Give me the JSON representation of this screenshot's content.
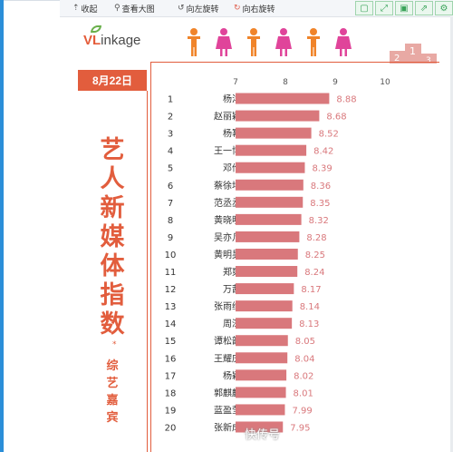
{
  "toolbar": {
    "buttons": [
      {
        "label": "收起",
        "icon": "collapse-icon"
      },
      {
        "label": "查看大图",
        "icon": "magnify-icon"
      },
      {
        "label": "向左旋转",
        "icon": "rotate-left-icon"
      },
      {
        "label": "向右旋转",
        "icon": "rotate-right-icon"
      }
    ],
    "icons": [
      "fit-icon",
      "expand-icon",
      "save-icon",
      "share-icon",
      "settings-icon"
    ]
  },
  "poster": {
    "logo_v": "VL",
    "logo_rest": "inkage",
    "date": "8月22日",
    "title_chars": [
      "艺",
      "人",
      "新",
      "媒",
      "体",
      "指",
      "数"
    ],
    "star": "*",
    "subtitle_chars": [
      "综",
      "艺",
      "嘉",
      "宾"
    ],
    "watermark": "快传号"
  },
  "colors": {
    "accent": "#e25d3d",
    "bar": "#d9787c",
    "person_orange": "#f0842a",
    "person_pink": "#e0449a"
  },
  "chart_data": {
    "type": "bar",
    "orientation": "horizontal",
    "xlim": [
      7,
      10
    ],
    "ticks": [
      7,
      8,
      9,
      10
    ],
    "ranks": [
      1,
      2,
      3,
      4,
      5,
      6,
      7,
      8,
      9,
      10,
      11,
      12,
      13,
      14,
      15,
      16,
      17,
      18,
      19,
      20
    ],
    "categories": [
      "杨洋",
      "赵丽颖",
      "杨幂",
      "王一博",
      "邓伦",
      "蔡徐坤",
      "范丞丞",
      "黄晓明",
      "吴亦凡",
      "黄明昊",
      "郑爽",
      "万茜",
      "张雨绮",
      "周深",
      "谭松韵",
      "王耀庆",
      "杨颖",
      "郭麒麟",
      "蓝盈莹",
      "张新成"
    ],
    "values": [
      8.88,
      8.68,
      8.52,
      8.42,
      8.39,
      8.36,
      8.35,
      8.32,
      8.28,
      8.25,
      8.24,
      8.17,
      8.14,
      8.13,
      8.05,
      8.04,
      8.02,
      8.01,
      7.99,
      7.95
    ],
    "value_labels": [
      "8.88",
      "8.68",
      "8.52",
      "8.42",
      "8.39",
      "8.36",
      "8.35",
      "8.32",
      "8.28",
      "8.25",
      "8.24",
      "8.17",
      "8.14",
      "8.13",
      "8.05",
      "8.04",
      "8.02",
      "8.01",
      "7.99",
      "7.95"
    ]
  }
}
